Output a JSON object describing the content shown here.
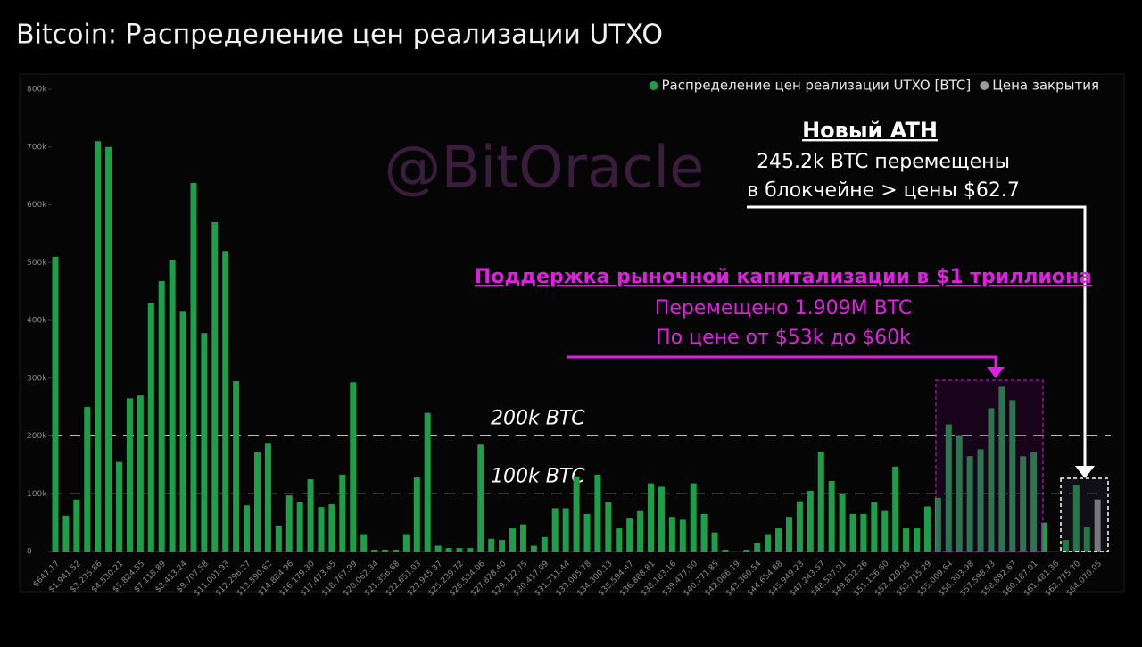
{
  "chart_data": {
    "type": "bar",
    "title": "Bitcoin: Распределение цен реализации UTXO",
    "watermark": "@BitOracle",
    "annotations": {
      "ath_title": "Новый ATH",
      "ath_line1": "245.2k BTC перемещены",
      "ath_line2": "в блокчейне > цены $62.7",
      "support_title": "Поддержка рыночной капитализации в $1 триллиона",
      "support_line1": "Перемещено 1.909M BTC",
      "support_line2": "По цене от $53k до $60k"
    },
    "categories": [
      "$647.17",
      null,
      "$1,941.52",
      null,
      "$3,235.86",
      null,
      "$4,530.21",
      null,
      "$5,824.55",
      null,
      "$7,118.89",
      null,
      "$8,413.24",
      null,
      "$9,707.58",
      null,
      "$11,001.93",
      null,
      "$12,296.27",
      null,
      "$13,590.62",
      null,
      "$14,884.96",
      null,
      "$16,179.30",
      null,
      "$17,473.65",
      null,
      "$18,767.99",
      null,
      "$20,062.34",
      null,
      "$21,356.68",
      null,
      "$22,651.03",
      null,
      "$23,945.37",
      null,
      "$25,239.72",
      null,
      "$26,534.06",
      null,
      "$27,828.40",
      null,
      "$29,122.75",
      null,
      "$30,417.09",
      null,
      "$31,711.44",
      null,
      "$33,005.78",
      null,
      "$34,300.13",
      null,
      "$35,594.47",
      null,
      "$36,888.81",
      null,
      "$38,183.16",
      null,
      "$39,477.50",
      null,
      "$40,771.85",
      null,
      "$42,066.19",
      null,
      "$43,360.54",
      null,
      "$44,654.88",
      null,
      "$45,949.23",
      null,
      "$47,243.57",
      null,
      "$48,537.91",
      null,
      "$49,832.26",
      null,
      "$51,126.60",
      null,
      "$52,420.95",
      null,
      "$53,715.29",
      null,
      "$55,009.64",
      null,
      "$56,303.98",
      null,
      "$57,598.33",
      null,
      "$58,892.67",
      null,
      "$60,187.01",
      null,
      "$61,481.36",
      null,
      "$62,775.70",
      null,
      "$64,070.05"
    ],
    "series": [
      {
        "name": "Распределение цен реализации UTXO [BTC]",
        "color": "#1f9e4a",
        "values": [
          510000,
          62000,
          90000,
          250000,
          710000,
          700000,
          155000,
          265000,
          270000,
          430000,
          468000,
          505000,
          415000,
          638000,
          378000,
          570000,
          520000,
          295000,
          80000,
          172000,
          188000,
          45000,
          97000,
          85000,
          125000,
          77000,
          82000,
          133000,
          293000,
          30000,
          3000,
          3000,
          3000,
          30000,
          128000,
          240000,
          10000,
          6000,
          6000,
          6000,
          185000,
          22000,
          20000,
          40000,
          47000,
          10000,
          25000,
          75000,
          75000,
          130000,
          65000,
          133000,
          85000,
          40000,
          57000,
          70000,
          118000,
          112000,
          60000,
          55000,
          118000,
          65000,
          33000,
          3000,
          0,
          3000,
          15000,
          30000,
          40000,
          60000,
          87000,
          105000,
          173000,
          122000,
          100000,
          65000,
          65000,
          85000,
          70000,
          147000,
          40000,
          40000,
          78000,
          93000,
          220000,
          200000,
          165000,
          177000,
          248000,
          285000,
          262000,
          165000,
          172000,
          50000,
          0,
          20000,
          115000,
          42000,
          0
        ]
      },
      {
        "name": "Цена закрытия",
        "color": "#9a9a9a",
        "values": [
          null,
          null,
          null,
          null,
          null,
          null,
          null,
          null,
          null,
          null,
          null,
          null,
          null,
          null,
          null,
          null,
          null,
          null,
          null,
          null,
          null,
          null,
          null,
          null,
          null,
          null,
          null,
          null,
          null,
          null,
          null,
          null,
          null,
          null,
          null,
          null,
          null,
          null,
          null,
          null,
          null,
          null,
          null,
          null,
          null,
          null,
          null,
          null,
          null,
          null,
          null,
          null,
          null,
          null,
          null,
          null,
          null,
          null,
          null,
          null,
          null,
          null,
          null,
          null,
          null,
          null,
          null,
          null,
          null,
          null,
          null,
          null,
          null,
          null,
          null,
          null,
          null,
          null,
          null,
          null,
          null,
          null,
          null,
          null,
          null,
          null,
          null,
          null,
          null,
          null,
          null,
          null,
          null,
          null,
          null,
          null,
          null,
          null,
          90000
        ]
      }
    ],
    "ylim": [
      0,
      800000
    ],
    "yticks": [
      0,
      {
        "value": 100000,
        "label": "100k"
      },
      {
        "value": 200000,
        "label": "200k"
      },
      {
        "value": 300000,
        "label": "300k"
      },
      {
        "value": 400000,
        "label": "400k"
      },
      {
        "value": 500000,
        "label": "500k"
      },
      {
        "value": 600000,
        "label": "600k"
      },
      {
        "value": 700000,
        "label": "700k"
      },
      {
        "value": 800000,
        "label": "800k"
      }
    ],
    "ref_lines": [
      {
        "value": 200000,
        "label": "200k BTC"
      },
      {
        "value": 100000,
        "label": "100k BTC"
      }
    ],
    "legend": "top-right"
  }
}
